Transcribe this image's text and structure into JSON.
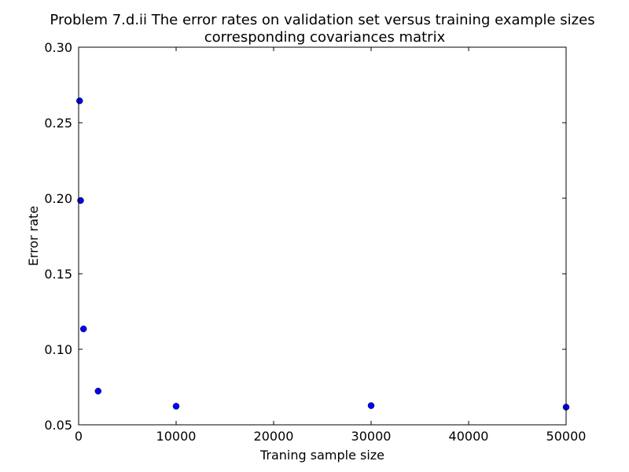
{
  "chart_data": {
    "type": "scatter",
    "title_line1": "Problem 7.d.ii The error rates on validation set versus\u0010 training example sizes",
    "title_line2": "corresponding covariances matrix",
    "xlabel": "Traning sample size",
    "ylabel": "Error rate",
    "xlim": [
      0,
      50000
    ],
    "ylim": [
      0.05,
      0.3
    ],
    "xticks": [
      0,
      10000,
      20000,
      30000,
      40000,
      50000
    ],
    "xtick_labels": [
      "0",
      "10000",
      "20000",
      "30000",
      "40000",
      "50000"
    ],
    "yticks": [
      0.05,
      0.1,
      0.15,
      0.2,
      0.25,
      0.3
    ],
    "ytick_labels": [
      "0.05",
      "0.10",
      "0.15",
      "0.20",
      "0.25",
      "0.30"
    ],
    "grid": false,
    "point_color": "#0000ff",
    "series": [
      {
        "x": [
          100,
          200,
          500,
          2000,
          10000,
          30000,
          50000
        ],
        "y": [
          0.2645,
          0.1985,
          0.1135,
          0.0723,
          0.0623,
          0.0627,
          0.0617
        ]
      }
    ]
  }
}
